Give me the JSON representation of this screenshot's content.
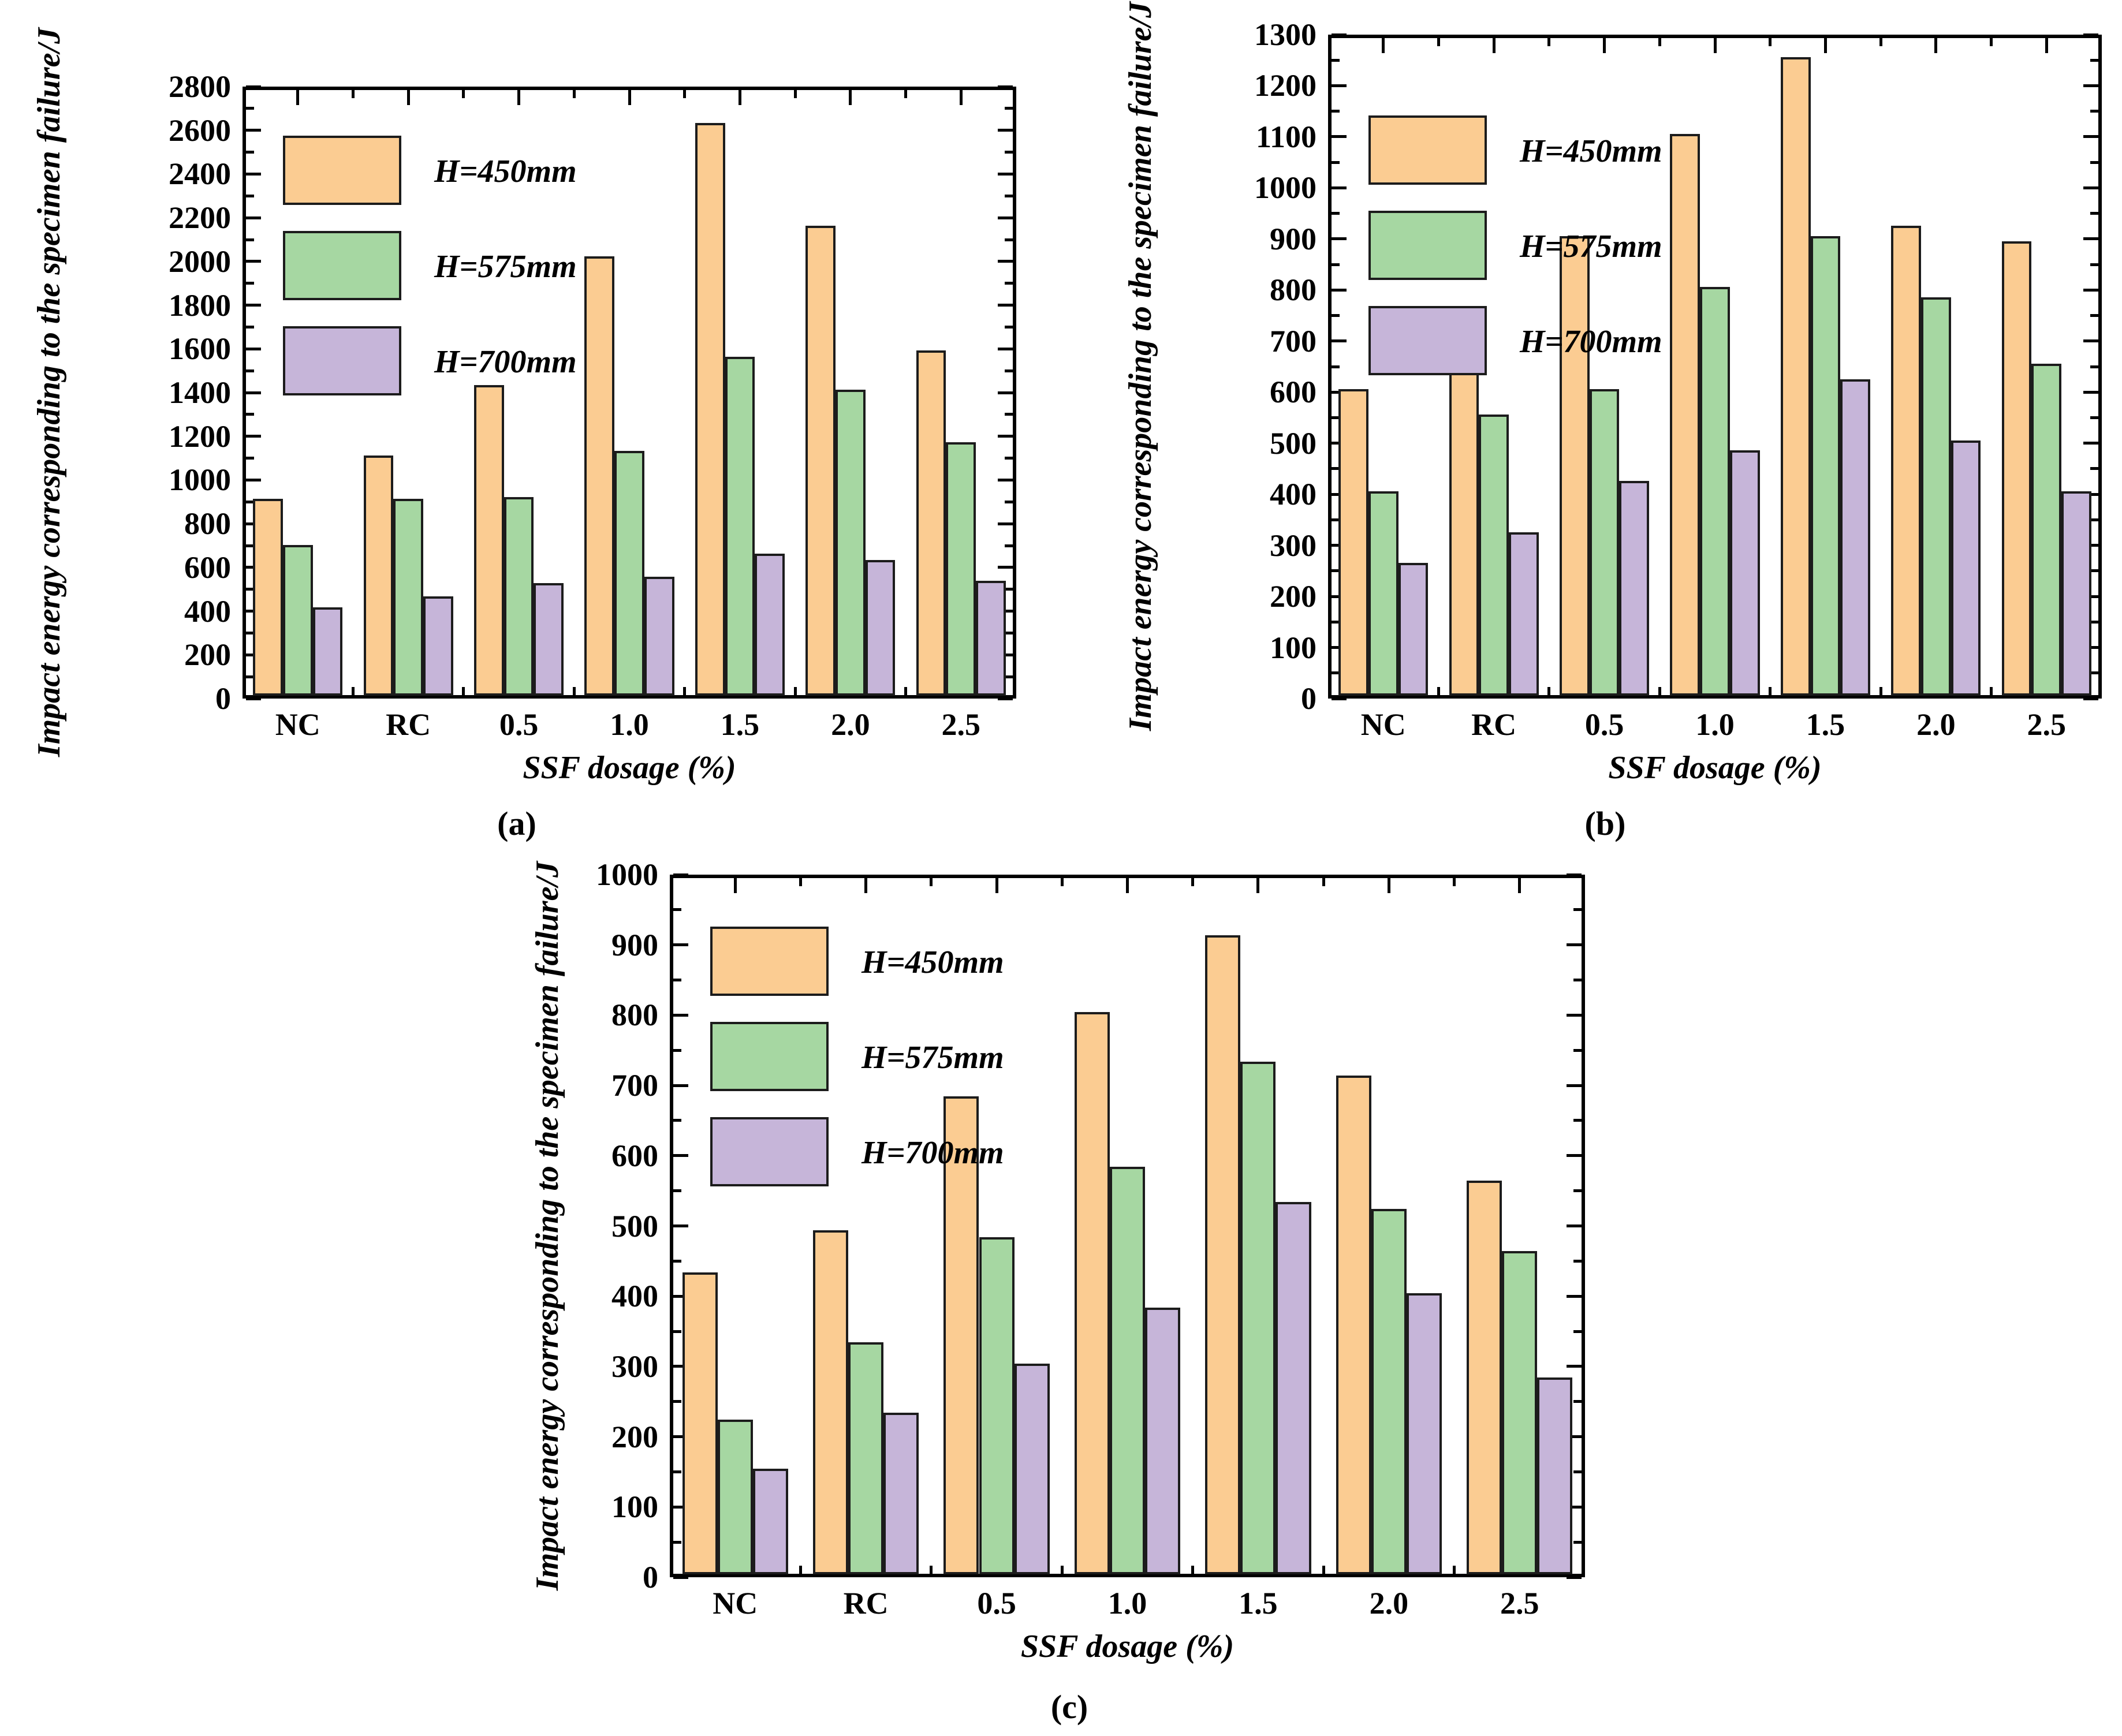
{
  "figure": {
    "background": "#ffffff",
    "axis_color": "#000000",
    "bar_border_color": "#1c1c1c",
    "series_colors": {
      "h450": "#FBCC92",
      "h575": "#A6D7A2",
      "h700": "#C6B5D9"
    }
  },
  "chart_data": [
    {
      "id": "a",
      "type": "bar",
      "caption": "(a)",
      "ylabel": "Impact energy corresponding to the specimen failure/J",
      "xlabel": "SSF dosage (%)",
      "categories": [
        "NC",
        "RC",
        "0.5",
        "1.0",
        "1.5",
        "2.0",
        "2.5"
      ],
      "series": [
        {
          "key": "h450",
          "name": "H=450mm",
          "color": "#FBCC92",
          "values": [
            900,
            1100,
            1420,
            2010,
            2620,
            2150,
            1580
          ]
        },
        {
          "key": "h575",
          "name": "H=575mm",
          "color": "#A6D7A2",
          "values": [
            690,
            900,
            910,
            1120,
            1550,
            1400,
            1160
          ]
        },
        {
          "key": "h700",
          "name": "H=700mm",
          "color": "#C6B5D9",
          "values": [
            405,
            455,
            515,
            545,
            650,
            620,
            525
          ]
        }
      ],
      "ylim": [
        0,
        2800
      ],
      "y_major_step": 200,
      "y_minor_step": 100,
      "y_ticks": [
        "0",
        "200",
        "400",
        "600",
        "800",
        "1000",
        "1200",
        "1400",
        "1600",
        "1800",
        "2000",
        "2200",
        "2400",
        "2600",
        "2800"
      ],
      "legend_position": "top-left",
      "grid": false
    },
    {
      "id": "b",
      "type": "bar",
      "caption": "(b)",
      "ylabel": "Impact energy corresponding to the specimen failure/J",
      "xlabel": "SSF dosage (%)",
      "categories": [
        "NC",
        "RC",
        "0.5",
        "1.0",
        "1.5",
        "2.0",
        "2.5"
      ],
      "series": [
        {
          "key": "h450",
          "name": "H=450mm",
          "color": "#FBCC92",
          "values": [
            600,
            740,
            900,
            1100,
            1250,
            920,
            890
          ]
        },
        {
          "key": "h575",
          "name": "H=575mm",
          "color": "#A6D7A2",
          "values": [
            400,
            550,
            600,
            800,
            900,
            780,
            650
          ]
        },
        {
          "key": "h700",
          "name": "H=700mm",
          "color": "#C6B5D9",
          "values": [
            260,
            320,
            420,
            480,
            620,
            500,
            400
          ]
        }
      ],
      "ylim": [
        0,
        1300
      ],
      "y_major_step": 100,
      "y_minor_step": 50,
      "y_ticks": [
        "0",
        "100",
        "200",
        "300",
        "400",
        "500",
        "600",
        "700",
        "800",
        "900",
        "1000",
        "1100",
        "1200",
        "1300"
      ],
      "legend_position": "top-left",
      "grid": false
    },
    {
      "id": "c",
      "type": "bar",
      "caption": "(c)",
      "ylabel": "Impact energy corresponding to the specimen failure/J",
      "xlabel": "SSF dosage (%)",
      "categories": [
        "NC",
        "RC",
        "0.5",
        "1.0",
        "1.5",
        "2.0",
        "2.5"
      ],
      "series": [
        {
          "key": "h450",
          "name": "H=450mm",
          "color": "#FBCC92",
          "values": [
            430,
            490,
            680,
            800,
            910,
            710,
            560
          ]
        },
        {
          "key": "h575",
          "name": "H=575mm",
          "color": "#A6D7A2",
          "values": [
            220,
            330,
            480,
            580,
            730,
            520,
            460
          ]
        },
        {
          "key": "h700",
          "name": "H=700mm",
          "color": "#C6B5D9",
          "values": [
            150,
            230,
            300,
            380,
            530,
            400,
            280
          ]
        }
      ],
      "ylim": [
        0,
        1000
      ],
      "y_major_step": 100,
      "y_minor_step": 50,
      "y_ticks": [
        "0",
        "100",
        "200",
        "300",
        "400",
        "500",
        "600",
        "700",
        "800",
        "900",
        "1000"
      ],
      "legend_position": "top-left",
      "grid": false
    }
  ]
}
